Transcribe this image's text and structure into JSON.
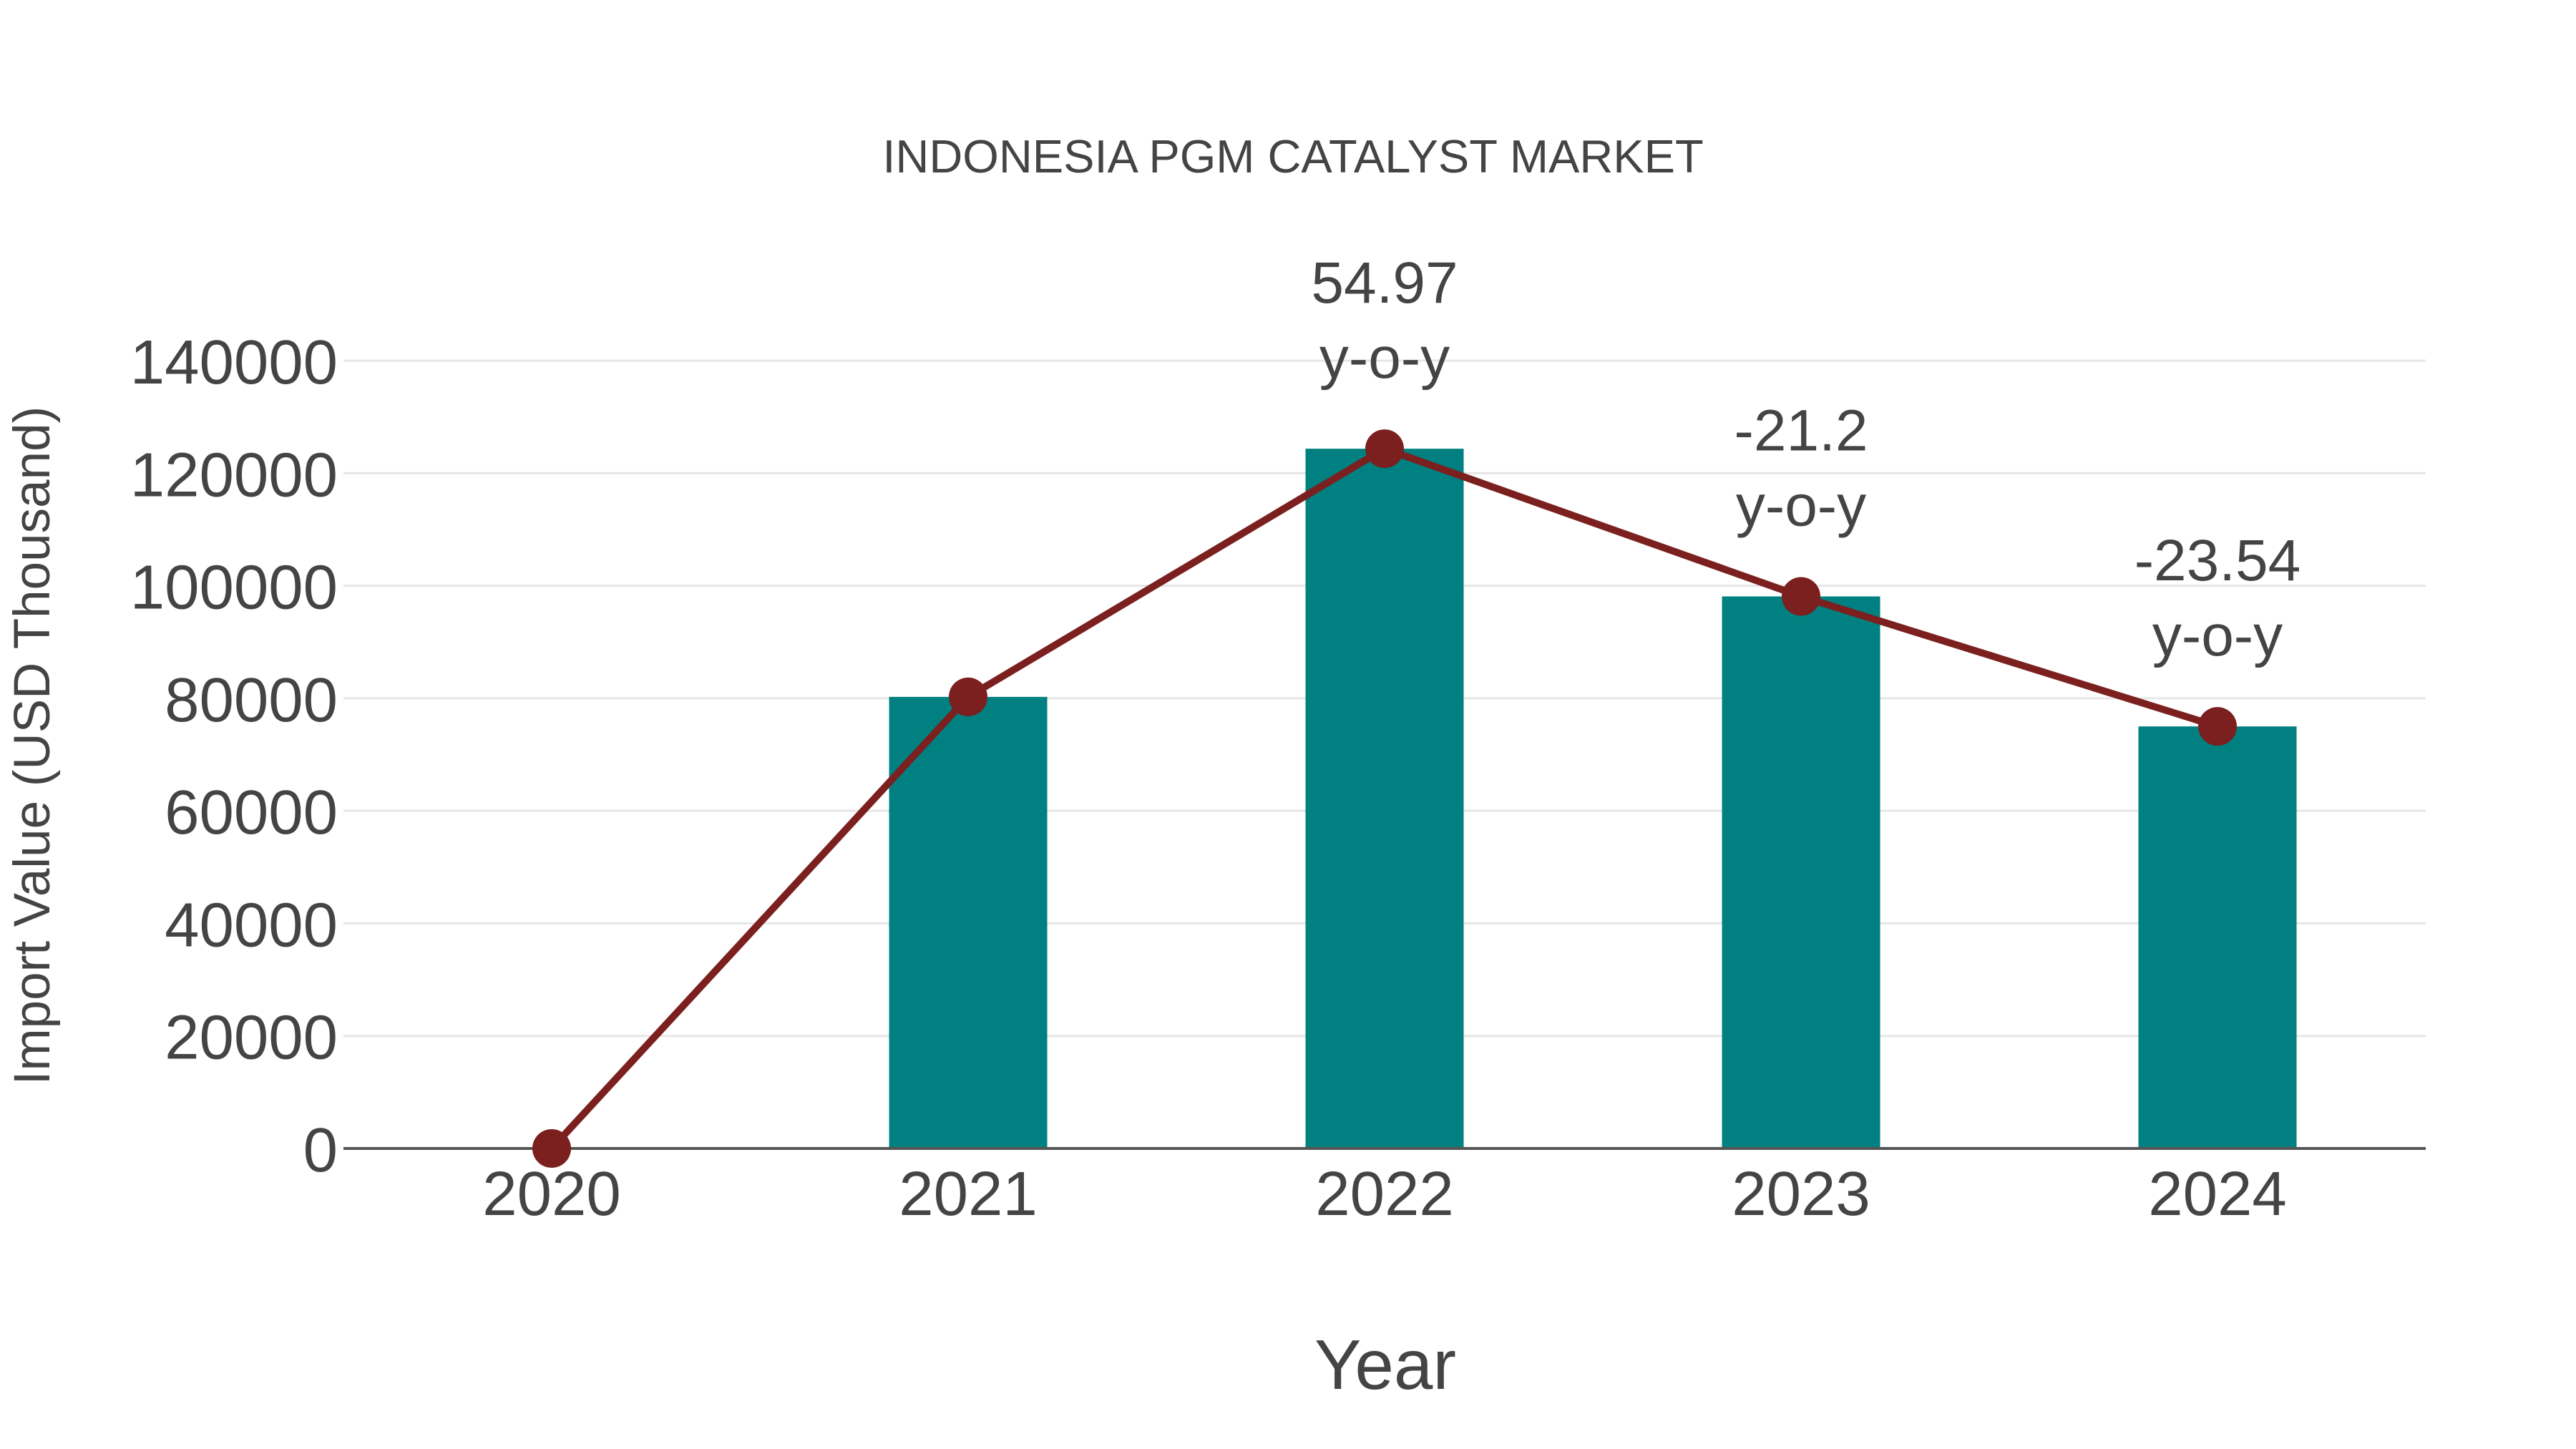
{
  "chart_data": {
    "type": "bar",
    "title": "INDONESIA PGM CATALYST MARKET",
    "xlabel": "Year",
    "ylabel": "Import Value (USD Thousand)",
    "categories": [
      "2020",
      "2021",
      "2022",
      "2023",
      "2024"
    ],
    "series": [
      {
        "name": "Import Value",
        "type": "bar",
        "color": "#008080",
        "values": [
          0,
          80250,
          124350,
          98100,
          75000
        ]
      },
      {
        "name": "Import Value Trend",
        "type": "line",
        "color": "#7B1F1F",
        "marker": "circle",
        "values": [
          0,
          80250,
          124350,
          98100,
          75000
        ]
      }
    ],
    "annotations": [
      {
        "category": "2022",
        "value": "54.97",
        "suffix": "y-o-y"
      },
      {
        "category": "2023",
        "value": "-21.2",
        "suffix": "y-o-y"
      },
      {
        "category": "2024",
        "value": "-23.54",
        "suffix": "y-o-y"
      }
    ],
    "yticks": [
      "0",
      "20000",
      "40000",
      "60000",
      "80000",
      "100000",
      "120000",
      "140000"
    ],
    "ylim": [
      0,
      140000
    ],
    "grid": true,
    "legend": "none"
  },
  "colors": {
    "bar": "#008080",
    "line": "#7B1F1F",
    "text": "#444444",
    "grid": "#E6E6E6",
    "axis": "#555555"
  }
}
